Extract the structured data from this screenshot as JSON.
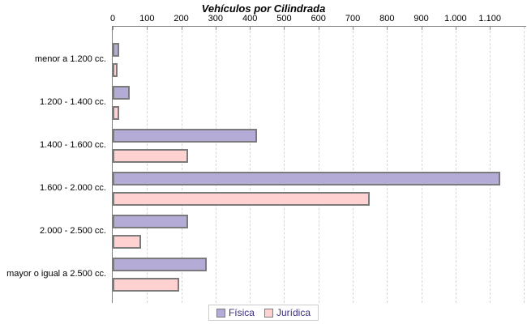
{
  "title": "Vehículos por Cilindrada",
  "chart_data": {
    "type": "bar",
    "orientation": "horizontal",
    "title": "Vehículos por Cilindrada",
    "categories": [
      "menor a 1.200 cc.",
      "1.200 - 1.400 cc.",
      "1.400 - 1.600 cc.",
      "1.600 - 2.000 cc.",
      "2.000 - 2.500 cc.",
      "mayor o igual a 2.500 cc."
    ],
    "series": [
      {
        "name": "Física",
        "color": "#b4abd6",
        "values": [
          20,
          50,
          420,
          1130,
          220,
          275
        ]
      },
      {
        "name": "Jurídica",
        "color": "#ffd1d1",
        "values": [
          15,
          20,
          220,
          750,
          82,
          195
        ]
      }
    ],
    "x_axis": {
      "position": "top",
      "tick_values": [
        0,
        100,
        200,
        300,
        400,
        500,
        600,
        700,
        800,
        900,
        1000,
        1100
      ],
      "tick_labels": [
        "0",
        "100",
        "200",
        "300",
        "400",
        "500",
        "600",
        "700",
        "800",
        "900",
        "1.000",
        "1.100"
      ],
      "min": 0,
      "max": 1206
    },
    "grid": "vertical-dashed",
    "legend_position": "bottom",
    "legend_entries": [
      "Física",
      "Jurídica"
    ]
  },
  "colors": {
    "fisica_bar": "#b4abd6",
    "juridica_bar": "#ffd1d1",
    "bar_border": "#7b7b7b",
    "axis": "#808080",
    "gridline": "#d6d6d6",
    "legend_text": "#3b2e7e",
    "title_text": "#000000"
  }
}
